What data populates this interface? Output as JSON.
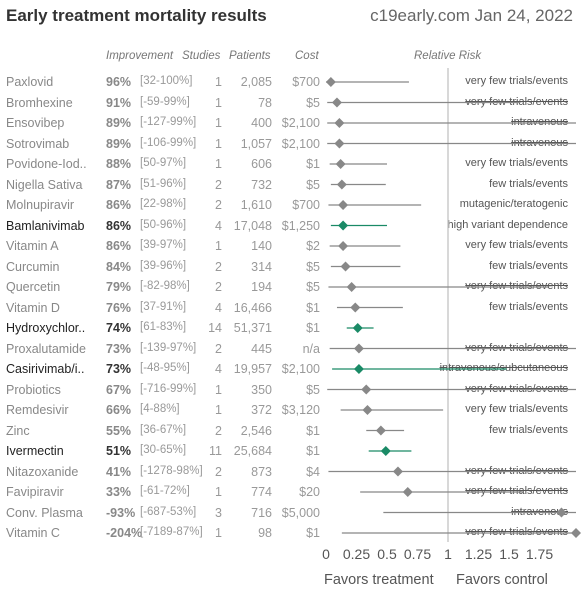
{
  "title": "Early treatment mortality results",
  "source": "c19early.com Jan 24, 2022",
  "headers": {
    "improvement": "Improvement",
    "studies": "Studies",
    "patients": "Patients",
    "cost": "Cost",
    "risk": "Relative Risk"
  },
  "colors": {
    "grey": "#888888",
    "green": "#1a8a66",
    "refline": "#cccccc"
  },
  "chart_data": {
    "type": "forest",
    "xlabel_left": "Favors treatment",
    "xlabel_right": "Favors control",
    "xlim": [
      0,
      1.95
    ],
    "ticks": [
      "0",
      "0.25",
      "0.5",
      "0.75",
      "1",
      "1.25",
      "1.5",
      "1.75"
    ],
    "tick_values": [
      0,
      0.25,
      0.5,
      0.75,
      1,
      1.25,
      1.5,
      1.75
    ],
    "rows": [
      {
        "name": "Paxlovid",
        "improvement": "96%",
        "ci": "[32-100%]",
        "studies": "1",
        "patients": "2,085",
        "cost": "$700",
        "rr": 0.04,
        "lo": 0.0,
        "hi": 0.68,
        "note": "very few trials/events",
        "strike": false,
        "highlight": false,
        "dark": false
      },
      {
        "name": "Bromhexine",
        "improvement": "91%",
        "ci": "[-59-99%]",
        "studies": "1",
        "patients": "78",
        "cost": "$5",
        "rr": 0.09,
        "lo": 0.01,
        "hi": 1.59,
        "note": "very few trials/events",
        "strike": true,
        "highlight": false,
        "dark": false
      },
      {
        "name": "Ensovibep",
        "improvement": "89%",
        "ci": "[-127-99%]",
        "studies": "1",
        "patients": "400",
        "cost": "$2,100",
        "rr": 0.11,
        "lo": 0.01,
        "hi": 2.27,
        "note": "intravenous",
        "strike": true,
        "highlight": false,
        "dark": false
      },
      {
        "name": "Sotrovimab",
        "improvement": "89%",
        "ci": "[-106-99%]",
        "studies": "1",
        "patients": "1,057",
        "cost": "$2,100",
        "rr": 0.11,
        "lo": 0.01,
        "hi": 2.06,
        "note": "intravenous",
        "strike": true,
        "highlight": false,
        "dark": false
      },
      {
        "name": "Povidone-Iod..",
        "improvement": "88%",
        "ci": "[50-97%]",
        "studies": "1",
        "patients": "606",
        "cost": "$1",
        "rr": 0.12,
        "lo": 0.03,
        "hi": 0.5,
        "note": "very few trials/events",
        "strike": false,
        "highlight": false,
        "dark": false
      },
      {
        "name": "Nigella Sativa",
        "improvement": "87%",
        "ci": "[51-96%]",
        "studies": "2",
        "patients": "732",
        "cost": "$5",
        "rr": 0.13,
        "lo": 0.04,
        "hi": 0.49,
        "note": "few trials/events",
        "strike": false,
        "highlight": false,
        "dark": false
      },
      {
        "name": "Molnupiravir",
        "improvement": "86%",
        "ci": "[22-98%]",
        "studies": "2",
        "patients": "1,610",
        "cost": "$700",
        "rr": 0.14,
        "lo": 0.02,
        "hi": 0.78,
        "note": "mutagenic/teratogenic",
        "strike": false,
        "highlight": false,
        "dark": false
      },
      {
        "name": "Bamlanivimab",
        "improvement": "86%",
        "ci": "[50-96%]",
        "studies": "4",
        "patients": "17,048",
        "cost": "$1,250",
        "rr": 0.14,
        "lo": 0.04,
        "hi": 0.5,
        "note": "high variant dependence",
        "strike": false,
        "highlight": true,
        "dark": true
      },
      {
        "name": "Vitamin A",
        "improvement": "86%",
        "ci": "[39-97%]",
        "studies": "1",
        "patients": "140",
        "cost": "$2",
        "rr": 0.14,
        "lo": 0.03,
        "hi": 0.61,
        "note": "very few trials/events",
        "strike": false,
        "highlight": false,
        "dark": false
      },
      {
        "name": "Curcumin",
        "improvement": "84%",
        "ci": "[39-96%]",
        "studies": "2",
        "patients": "314",
        "cost": "$5",
        "rr": 0.16,
        "lo": 0.04,
        "hi": 0.61,
        "note": "few trials/events",
        "strike": false,
        "highlight": false,
        "dark": false
      },
      {
        "name": "Quercetin",
        "improvement": "79%",
        "ci": "[-82-98%]",
        "studies": "2",
        "patients": "194",
        "cost": "$5",
        "rr": 0.21,
        "lo": 0.02,
        "hi": 1.82,
        "note": "very few trials/events",
        "strike": true,
        "highlight": false,
        "dark": false
      },
      {
        "name": "Vitamin D",
        "improvement": "76%",
        "ci": "[37-91%]",
        "studies": "4",
        "patients": "16,466",
        "cost": "$1",
        "rr": 0.24,
        "lo": 0.09,
        "hi": 0.63,
        "note": "few trials/events",
        "strike": false,
        "highlight": false,
        "dark": false
      },
      {
        "name": "Hydroxychlor..",
        "improvement": "74%",
        "ci": "[61-83%]",
        "studies": "14",
        "patients": "51,371",
        "cost": "$1",
        "rr": 0.26,
        "lo": 0.17,
        "hi": 0.39,
        "note": "",
        "strike": false,
        "highlight": true,
        "dark": true
      },
      {
        "name": "Proxalutamide",
        "improvement": "73%",
        "ci": "[-139-97%]",
        "studies": "2",
        "patients": "445",
        "cost": "n/a",
        "rr": 0.27,
        "lo": 0.03,
        "hi": 2.39,
        "note": "very few trials/events",
        "strike": true,
        "highlight": false,
        "dark": false
      },
      {
        "name": "Casirivimab/i..",
        "improvement": "73%",
        "ci": "[-48-95%]",
        "studies": "4",
        "patients": "19,957",
        "cost": "$2,100",
        "rr": 0.27,
        "lo": 0.05,
        "hi": 1.48,
        "note": "intravenous/subcutaneous",
        "strike": true,
        "highlight": true,
        "dark": true
      },
      {
        "name": "Probiotics",
        "improvement": "67%",
        "ci": "[-716-99%]",
        "studies": "1",
        "patients": "350",
        "cost": "$5",
        "rr": 0.33,
        "lo": 0.01,
        "hi": 8.16,
        "note": "very few trials/events",
        "strike": true,
        "highlight": false,
        "dark": false
      },
      {
        "name": "Remdesivir",
        "improvement": "66%",
        "ci": "[4-88%]",
        "studies": "1",
        "patients": "372",
        "cost": "$3,120",
        "rr": 0.34,
        "lo": 0.12,
        "hi": 0.96,
        "note": "very few trials/events",
        "strike": false,
        "highlight": false,
        "dark": false
      },
      {
        "name": "Zinc",
        "improvement": "55%",
        "ci": "[36-67%]",
        "studies": "2",
        "patients": "2,546",
        "cost": "$1",
        "rr": 0.45,
        "lo": 0.33,
        "hi": 0.64,
        "note": "few trials/events",
        "strike": false,
        "highlight": false,
        "dark": false
      },
      {
        "name": "Ivermectin",
        "improvement": "51%",
        "ci": "[30-65%]",
        "studies": "11",
        "patients": "25,684",
        "cost": "$1",
        "rr": 0.49,
        "lo": 0.35,
        "hi": 0.7,
        "note": "",
        "strike": false,
        "highlight": true,
        "dark": true
      },
      {
        "name": "Nitazoxanide",
        "improvement": "41%",
        "ci": "[-1278-98%]",
        "studies": "2",
        "patients": "873",
        "cost": "$4",
        "rr": 0.59,
        "lo": 0.02,
        "hi": 13.78,
        "note": "very few trials/events",
        "strike": true,
        "highlight": false,
        "dark": false
      },
      {
        "name": "Favipiravir",
        "improvement": "33%",
        "ci": "[-61-72%]",
        "studies": "1",
        "patients": "774",
        "cost": "$20",
        "rr": 0.67,
        "lo": 0.28,
        "hi": 1.61,
        "note": "very few trials/events",
        "strike": true,
        "highlight": false,
        "dark": false
      },
      {
        "name": "Conv. Plasma",
        "improvement": "-93%",
        "ci": "[-687-53%]",
        "studies": "3",
        "patients": "716",
        "cost": "$5,000",
        "rr": 1.93,
        "lo": 0.47,
        "hi": 7.87,
        "note": "intravenous",
        "strike": true,
        "highlight": false,
        "dark": false
      },
      {
        "name": "Vitamin C",
        "improvement": "-204%",
        "ci": "[-7189-87%]",
        "studies": "1",
        "patients": "98",
        "cost": "$1",
        "rr": 3.04,
        "lo": 0.13,
        "hi": 72.89,
        "note": "very few trials/events",
        "strike": true,
        "highlight": false,
        "dark": false
      }
    ]
  }
}
